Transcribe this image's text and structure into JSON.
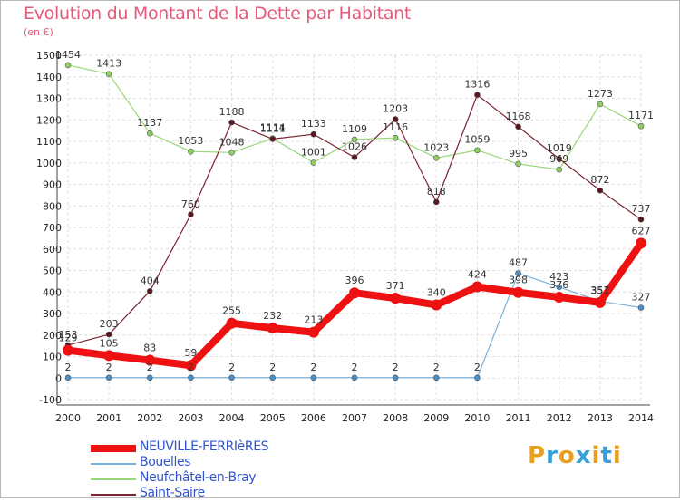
{
  "title": "Evolution du Montant de la Dette par Habitant",
  "unit": "(en €)",
  "logo": {
    "text": "Proxiti",
    "colors": [
      "#e8a020",
      "#3a9fd8",
      "#e8a020",
      "#3a9fd8",
      "#e8a020",
      "#3a9fd8",
      "#e8a020"
    ]
  },
  "chart_data": {
    "type": "line",
    "x": [
      "2000",
      "2001",
      "2002",
      "2003",
      "2004",
      "2005",
      "2006",
      "2007",
      "2008",
      "2009",
      "2010",
      "2011",
      "2012",
      "2013",
      "2014"
    ],
    "ylim": [
      -100,
      1500
    ],
    "yticks": [
      -100,
      0,
      100,
      200,
      300,
      400,
      500,
      600,
      700,
      800,
      900,
      1000,
      1100,
      1200,
      1300,
      1400,
      1500
    ],
    "grid": true,
    "legend": "bottom-left",
    "series": [
      {
        "name": "Neufchâtel-en-Bray",
        "color": "#99d67a",
        "point_color": "#8fd060",
        "width": 1.2,
        "values": [
          1454,
          1413,
          1137,
          1053,
          1048,
          1114,
          1001,
          1109,
          1116,
          1023,
          1059,
          995,
          969,
          1273,
          1171
        ]
      },
      {
        "name": "Saint-Saire",
        "color": "#7a2530",
        "point_color": "#5a1520",
        "width": 1.2,
        "values": [
          153,
          203,
          404,
          760,
          1188,
          1111,
          1133,
          1026,
          1203,
          818,
          1316,
          1168,
          1019,
          872,
          737
        ]
      },
      {
        "name": "Bouelles",
        "color": "#7ab0d8",
        "point_color": "#4a90c8",
        "width": 1.2,
        "values": [
          2,
          2,
          2,
          2,
          2,
          2,
          2,
          2,
          2,
          2,
          2,
          487,
          423,
          357,
          327
        ]
      },
      {
        "name": "NEUVILLE-FERRIèRES",
        "color": "#ee1111",
        "point_color": "#ee1111",
        "width": 8,
        "values": [
          129,
          105,
          83,
          59,
          255,
          232,
          213,
          396,
          371,
          340,
          424,
          398,
          376,
          351,
          627
        ]
      }
    ],
    "legend_order": [
      "NEUVILLE-FERRIèRES",
      "Bouelles",
      "Neufchâtel-en-Bray",
      "Saint-Saire"
    ],
    "legend_text_color": "#3355cc"
  }
}
